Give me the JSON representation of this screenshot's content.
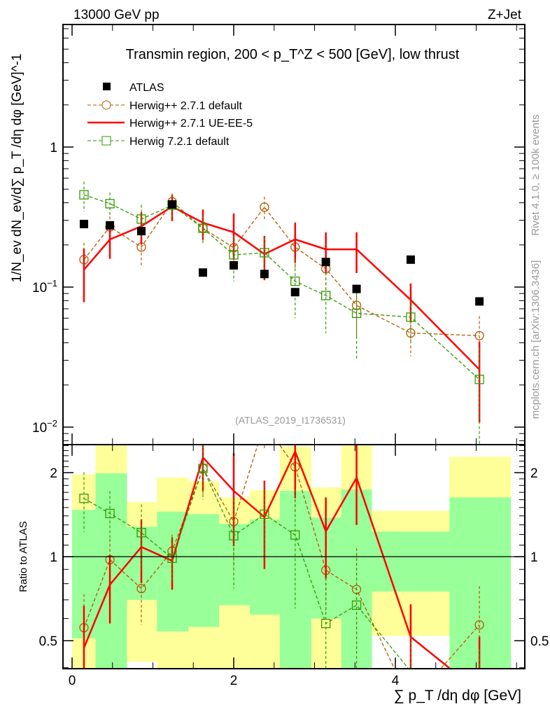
{
  "header": {
    "left": "13000 GeV pp",
    "right": "Z+Jet"
  },
  "side": {
    "rivet": "Rivet 4.1.0, ≥ 100k events",
    "mcplots": "mcplots.cern.ch [arXiv:1306.3436]"
  },
  "chart_data": {
    "type": "line",
    "title": "Transmin region, 200 < p_T^Z < 500 [GeV], low thrust",
    "watermark": "(ATLAS_2019_I1736531)",
    "xlabel": "∑ p_T /dη dφ [GeV]",
    "ylabel": "1/N_ev dN_ev/d∑ p_T /dη dφ  [GeV]^-1",
    "ratio_ylabel": "Ratio to ATLAS",
    "xlim": [
      -0.11,
      5.6
    ],
    "ylim": [
      0.008,
      5.2
    ],
    "yscale": "log",
    "ratio_ylim": [
      0.397,
      2.52
    ],
    "x_ticks": [
      "0",
      "2",
      "4"
    ],
    "y_ticks": [
      {
        "v": 1,
        "label": "1"
      },
      {
        "v": 0.1,
        "label": "10^-1"
      },
      {
        "v": 0.01,
        "label": "10^-2"
      }
    ],
    "ratio_ticks": [
      "0.5",
      "1",
      "2"
    ],
    "legend_position": "top-left",
    "x": [
      0.147,
      0.468,
      0.857,
      1.238,
      1.619,
      2.0,
      2.38,
      2.76,
      3.14,
      3.52,
      4.19,
      5.04
    ],
    "bin_edges": [
      0,
      0.29,
      0.68,
      1.05,
      1.44,
      1.82,
      2.2,
      2.57,
      2.96,
      3.33,
      3.71,
      4.67,
      5.43
    ],
    "data": {
      "name": "ATLAS",
      "values": [
        0.282,
        0.276,
        0.251,
        0.389,
        0.127,
        0.143,
        0.124,
        0.092,
        0.151,
        0.097,
        0.157,
        0.079
      ],
      "stat_band": [
        [
          0.3,
          1.47,
          0.51
        ],
        [
          0.3,
          1.99,
          0.3
        ],
        [
          0.3,
          1.28,
          0.7
        ],
        [
          0.3,
          1.45,
          0.54
        ],
        [
          0.3,
          1.42,
          0.56
        ],
        [
          0.3,
          1.31,
          0.67
        ],
        [
          0.3,
          1.36,
          0.62
        ],
        [
          0.3,
          1.72,
          0.3
        ],
        [
          0.3,
          1.38,
          0.6
        ],
        [
          0.3,
          1.74,
          0.3
        ],
        [
          0.3,
          1.23,
          0.75
        ],
        [
          0.3,
          1.63,
          0.3
        ]
      ],
      "total_band": [
        [
          1.97,
          0.3
        ],
        [
          3.0,
          0.3
        ],
        [
          1.57,
          0.42
        ],
        [
          1.92,
          0.3
        ],
        [
          1.86,
          0.3
        ],
        [
          1.63,
          0.3
        ],
        [
          1.73,
          0.3
        ],
        [
          2.48,
          0.3
        ],
        [
          1.77,
          0.3
        ],
        [
          2.5,
          0.3
        ],
        [
          1.46,
          0.52
        ],
        [
          2.28,
          0.3
        ]
      ]
    },
    "series": [
      {
        "name": "Herwig++ 2.7.1 default",
        "color": "#b35900",
        "style": "dashed",
        "marker": "circle",
        "values": [
          0.157,
          0.269,
          0.193,
          0.407,
          0.263,
          0.191,
          0.372,
          0.193,
          0.135,
          0.074,
          0.047,
          0.045
        ],
        "err": [
          0.05,
          0.05,
          0.05,
          0.06,
          0.05,
          0.06,
          0.07,
          0.06,
          0.04,
          0.03,
          0.015,
          0.017
        ]
      },
      {
        "name": "Herwig++ 2.7.1 UE-EE-5",
        "color": "#ff0000",
        "style": "solid",
        "marker": "none",
        "values": [
          0.133,
          0.219,
          0.272,
          0.376,
          0.288,
          0.246,
          0.172,
          0.219,
          0.186,
          0.186,
          0.081,
          0.0258
        ],
        "err": [
          0.055,
          0.06,
          0.07,
          0.08,
          0.07,
          0.09,
          0.06,
          0.07,
          0.06,
          0.06,
          0.025,
          0.015
        ]
      },
      {
        "name": "Herwig 7.2.1 default",
        "color": "#339900",
        "style": "dashed",
        "marker": "square",
        "values": [
          0.456,
          0.394,
          0.306,
          0.384,
          0.263,
          0.17,
          0.176,
          0.11,
          0.087,
          0.065,
          0.061,
          0.0219
        ],
        "err": [
          0.11,
          0.08,
          0.08,
          0.07,
          0.06,
          0.06,
          0.05,
          0.05,
          0.04,
          0.035,
          0.02,
          0.015
        ]
      }
    ],
    "colors": {
      "stat": "#99ff99",
      "total": "#ffff99"
    }
  }
}
